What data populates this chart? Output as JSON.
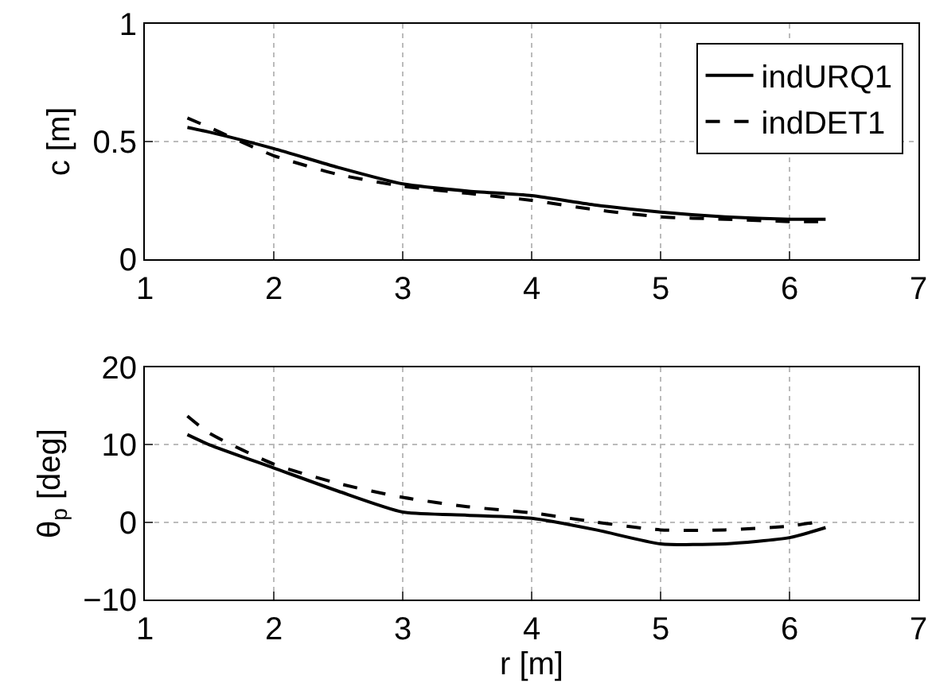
{
  "chart_data": [
    {
      "type": "line",
      "ylabel": "c [m]",
      "xlim": [
        1,
        7
      ],
      "xticks": [
        1,
        2,
        3,
        4,
        5,
        6,
        7
      ],
      "ylim": [
        0,
        1
      ],
      "yticks": [
        0,
        0.5,
        1
      ],
      "grid": true,
      "legend": "top right",
      "x": [
        1.33,
        1.5,
        2,
        2.5,
        3,
        3.5,
        4,
        4.5,
        5,
        5.5,
        6,
        6.28
      ],
      "series": [
        {
          "name": "indURQ1",
          "color": "#000000",
          "line_style": "solid",
          "values": [
            0.56,
            0.54,
            0.47,
            0.39,
            0.32,
            0.29,
            0.27,
            0.23,
            0.2,
            0.18,
            0.17,
            0.17
          ]
        },
        {
          "name": "indDET1",
          "color": "#000000",
          "line_style": "dashed",
          "values": [
            0.6,
            0.56,
            0.44,
            0.36,
            0.31,
            0.28,
            0.25,
            0.21,
            0.18,
            0.17,
            0.16,
            0.16
          ]
        }
      ]
    },
    {
      "type": "line",
      "ylabel": "θ$_{p}$ [deg]",
      "xlabel": "r [m]",
      "xlim": [
        1,
        7
      ],
      "xticks": [
        1,
        2,
        3,
        4,
        5,
        6,
        7
      ],
      "ylim": [
        -10,
        20
      ],
      "yticks": [
        {
          "value": -10,
          "label": "−10"
        },
        0,
        10,
        20
      ],
      "grid": true,
      "legend": false,
      "x": [
        1.33,
        1.5,
        2,
        2.5,
        3,
        3.5,
        4,
        4.5,
        5,
        5.5,
        6,
        6.28
      ],
      "series": [
        {
          "color": "#000000",
          "line_style": "solid",
          "values": [
            11.3,
            10,
            7,
            4,
            1.3,
            0.9,
            0.5,
            -1,
            -2.8,
            -2.8,
            -2,
            -0.7
          ]
        },
        {
          "color": "#000000",
          "line_style": "dashed",
          "values": [
            13.7,
            11.5,
            7.5,
            5,
            3.2,
            2,
            1.2,
            0,
            -1,
            -1,
            -0.5,
            0.2
          ]
        }
      ]
    }
  ]
}
